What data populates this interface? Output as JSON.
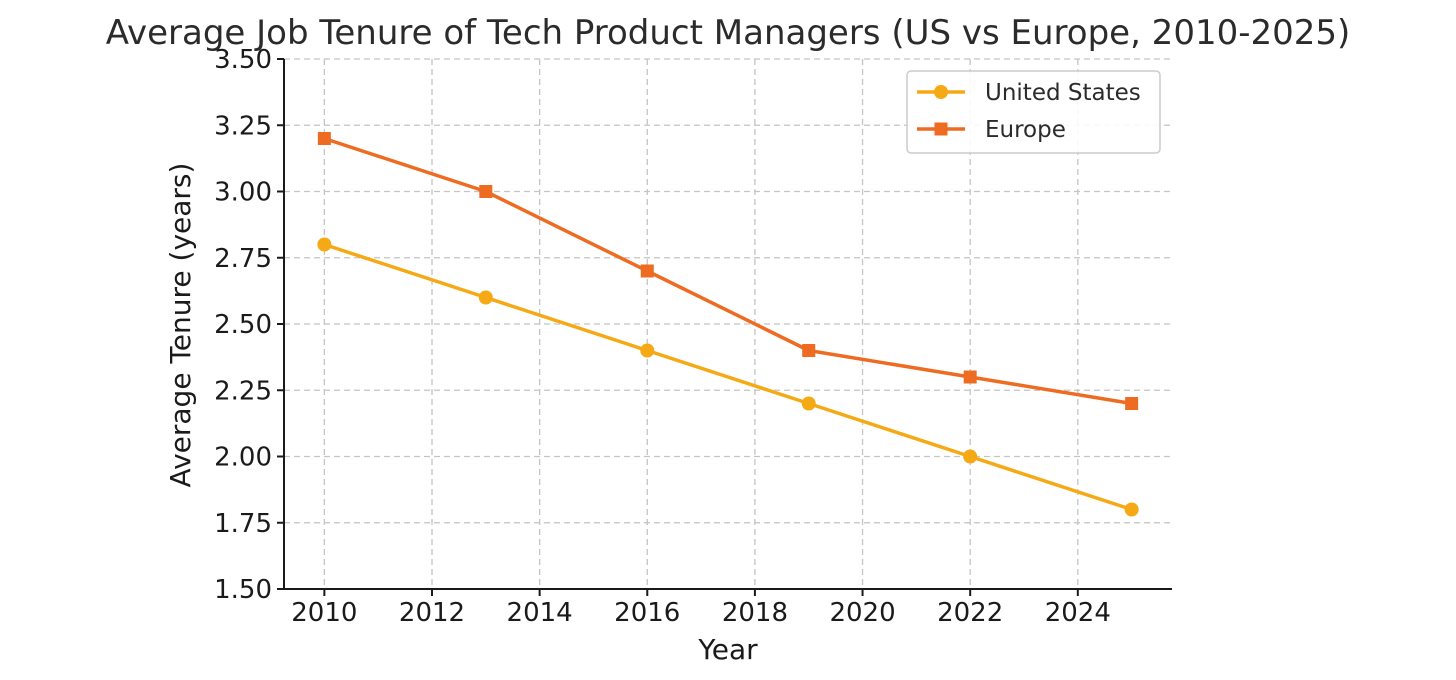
{
  "chart_data": {
    "type": "line",
    "title": "Average Job Tenure of Tech Product Managers (US vs Europe, 2010-2025)",
    "xlabel": "Year",
    "ylabel": "Average Tenure (years)",
    "x": [
      2010,
      2013,
      2016,
      2019,
      2022,
      2025
    ],
    "xlim": [
      2009.25,
      2025.75
    ],
    "ylim": [
      1.5,
      3.5
    ],
    "x_ticks": [
      "2010",
      "2012",
      "2014",
      "2016",
      "2018",
      "2020",
      "2022",
      "2024"
    ],
    "y_ticks": [
      "1.50",
      "1.75",
      "2.00",
      "2.25",
      "2.50",
      "2.75",
      "3.00",
      "3.25",
      "3.50"
    ],
    "grid": true,
    "legend_position": "top-right",
    "series": [
      {
        "name": "United States",
        "values": [
          2.8,
          2.6,
          2.4,
          2.2,
          2.0,
          1.8
        ],
        "color": "#f5a914",
        "marker": "circle"
      },
      {
        "name": "Europe",
        "values": [
          3.2,
          3.0,
          2.7,
          2.4,
          2.3,
          2.2
        ],
        "color": "#ee6b22",
        "marker": "square"
      }
    ]
  }
}
